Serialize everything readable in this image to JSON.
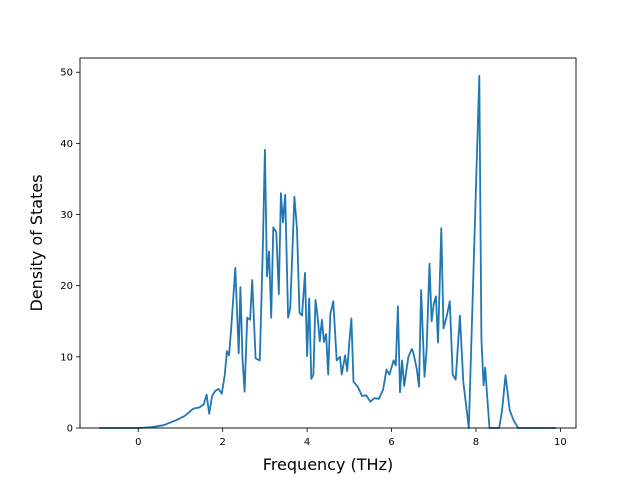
{
  "chart_data": {
    "type": "line",
    "title": "",
    "xlabel": "Frequency (THz)",
    "ylabel": "Density of States",
    "xlim": [
      -1.38,
      10.37
    ],
    "ylim": [
      0,
      52
    ],
    "xticks": [
      0,
      2,
      4,
      6,
      8,
      10
    ],
    "yticks": [
      0,
      10,
      20,
      30,
      40,
      50
    ],
    "grid": false,
    "line_color": "#1f77b4",
    "series": [
      {
        "x": [
          -0.93,
          0.0,
          0.3,
          0.6,
          0.9,
          1.1,
          1.3,
          1.45,
          1.55,
          1.62,
          1.68,
          1.75,
          1.82,
          1.9,
          1.98,
          2.05,
          2.1,
          2.15,
          2.2,
          2.3,
          2.38,
          2.42,
          2.47,
          2.52,
          2.58,
          2.65,
          2.7,
          2.78,
          2.88,
          2.95,
          3.0,
          3.05,
          3.1,
          3.15,
          3.2,
          3.27,
          3.33,
          3.38,
          3.43,
          3.48,
          3.55,
          3.6,
          3.65,
          3.7,
          3.76,
          3.82,
          3.88,
          3.95,
          4.0,
          4.05,
          4.1,
          4.15,
          4.2,
          4.25,
          4.3,
          4.35,
          4.4,
          4.45,
          4.5,
          4.55,
          4.62,
          4.7,
          4.78,
          4.82,
          4.9,
          4.95,
          5.0,
          5.05,
          5.1,
          5.2,
          5.3,
          5.4,
          5.5,
          5.6,
          5.7,
          5.8,
          5.88,
          5.95,
          6.05,
          6.1,
          6.15,
          6.2,
          6.25,
          6.3,
          6.4,
          6.48,
          6.52,
          6.6,
          6.65,
          6.7,
          6.78,
          6.83,
          6.9,
          6.95,
          7.0,
          7.05,
          7.1,
          7.18,
          7.23,
          7.3,
          7.38,
          7.45,
          7.52,
          7.62,
          7.7,
          7.78,
          7.83,
          8.08,
          8.13,
          8.18,
          8.22,
          8.27,
          8.32,
          8.38,
          8.45,
          8.55,
          8.62,
          8.7,
          8.8,
          8.9,
          9.0,
          9.1,
          9.3,
          9.9
        ],
        "y": [
          0.0,
          0.0,
          0.1,
          0.4,
          1.1,
          1.7,
          2.7,
          2.9,
          3.3,
          4.7,
          2.0,
          4.5,
          5.2,
          5.5,
          4.8,
          7.5,
          10.8,
          10.2,
          13.8,
          22.5,
          10.5,
          19.8,
          9.8,
          5.1,
          15.5,
          15.2,
          20.8,
          9.8,
          9.5,
          25.2,
          39.1,
          21.3,
          24.8,
          15.5,
          28.2,
          27.5,
          18.8,
          33.0,
          28.9,
          32.8,
          15.5,
          16.8,
          24.5,
          32.5,
          28.0,
          16.2,
          15.8,
          21.8,
          10.1,
          18.2,
          6.9,
          7.5,
          18.0,
          15.5,
          12.2,
          15.2,
          12.1,
          13.2,
          7.5,
          16.0,
          17.8,
          9.5,
          10.0,
          7.5,
          10.2,
          8.0,
          12.0,
          15.4,
          6.5,
          5.8,
          4.5,
          4.6,
          3.7,
          4.2,
          4.1,
          5.4,
          8.2,
          7.5,
          9.5,
          8.8,
          17.1,
          5.0,
          9.5,
          5.9,
          10.0,
          11.1,
          10.5,
          8.2,
          5.8,
          19.4,
          7.2,
          11.0,
          23.1,
          15.0,
          17.4,
          18.5,
          12.0,
          28.1,
          14.0,
          15.5,
          17.8,
          7.5,
          6.8,
          15.8,
          6.5,
          2.5,
          0.0,
          49.5,
          12.5,
          6.0,
          8.5,
          4.0,
          0.0,
          0.0,
          0.0,
          0.0,
          2.5,
          7.4,
          2.5,
          1.0,
          0.0,
          0.0,
          0.0,
          0.0
        ]
      }
    ]
  }
}
